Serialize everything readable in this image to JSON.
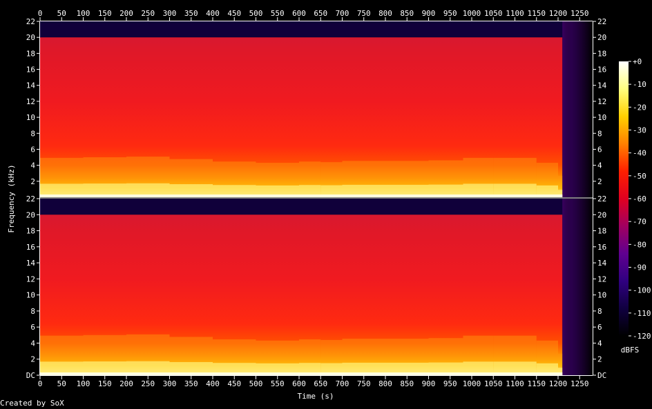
{
  "chart_data": {
    "type": "heatmap",
    "title": "",
    "xlabel": "Time (s)",
    "ylabel": "Frequency (kHz)",
    "xlim": [
      0,
      1280
    ],
    "ylim_khz": [
      0,
      22
    ],
    "x_ticks": [
      0,
      50,
      100,
      150,
      200,
      250,
      300,
      350,
      400,
      450,
      500,
      550,
      600,
      650,
      700,
      750,
      800,
      850,
      900,
      950,
      1000,
      1050,
      1100,
      1150,
      1200,
      1250
    ],
    "channels": [
      {
        "y_ticks": [
          "22",
          "20",
          "18",
          "16",
          "14",
          "12",
          "10",
          "8",
          "6",
          "4",
          "2"
        ],
        "y_values": [
          22,
          20,
          18,
          16,
          14,
          12,
          10,
          8,
          6,
          4,
          2
        ]
      },
      {
        "y_ticks": [
          "22",
          "20",
          "18",
          "16",
          "14",
          "12",
          "10",
          "8",
          "6",
          "4",
          "2",
          "DC"
        ],
        "y_values": [
          22,
          20,
          18,
          16,
          14,
          12,
          10,
          8,
          6,
          4,
          2,
          0
        ]
      }
    ],
    "lowpass_cutoff_khz": 20,
    "fade_out_start_s": 1210,
    "energy_profile": [
      {
        "t": 0,
        "level": 0.62
      },
      {
        "t": 100,
        "level": 0.66
      },
      {
        "t": 200,
        "level": 0.64
      },
      {
        "t": 300,
        "level": 0.68
      },
      {
        "t": 400,
        "level": 0.56
      },
      {
        "t": 500,
        "level": 0.6
      },
      {
        "t": 560,
        "level": 0.52
      },
      {
        "t": 600,
        "level": 0.6
      },
      {
        "t": 650,
        "level": 0.56
      },
      {
        "t": 700,
        "level": 0.58
      },
      {
        "t": 800,
        "level": 0.6
      },
      {
        "t": 900,
        "level": 0.58
      },
      {
        "t": 980,
        "level": 0.62
      },
      {
        "t": 1050,
        "level": 0.66
      },
      {
        "t": 1150,
        "level": 0.62
      },
      {
        "t": 1200,
        "level": 0.5
      },
      {
        "t": 1250,
        "level": 0.2
      },
      {
        "t": 1280,
        "level": 0.05
      }
    ],
    "colorbar": {
      "label": "dBFS",
      "ticks": [
        "+0",
        "-10",
        "-20",
        "-30",
        "-40",
        "-50",
        "-60",
        "-70",
        "-80",
        "-90",
        "-100",
        "-110",
        "-120"
      ],
      "values": [
        0,
        -10,
        -20,
        -30,
        -40,
        -50,
        -60,
        -70,
        -80,
        -90,
        -100,
        -110,
        -120
      ],
      "colors": [
        "#ffffff",
        "#ffff80",
        "#ffd000",
        "#ff8000",
        "#ff2000",
        "#e00020",
        "#a00060",
        "#600090",
        "#300080",
        "#100040",
        "#000000"
      ]
    }
  },
  "footer": {
    "credit": "Created by SoX"
  }
}
